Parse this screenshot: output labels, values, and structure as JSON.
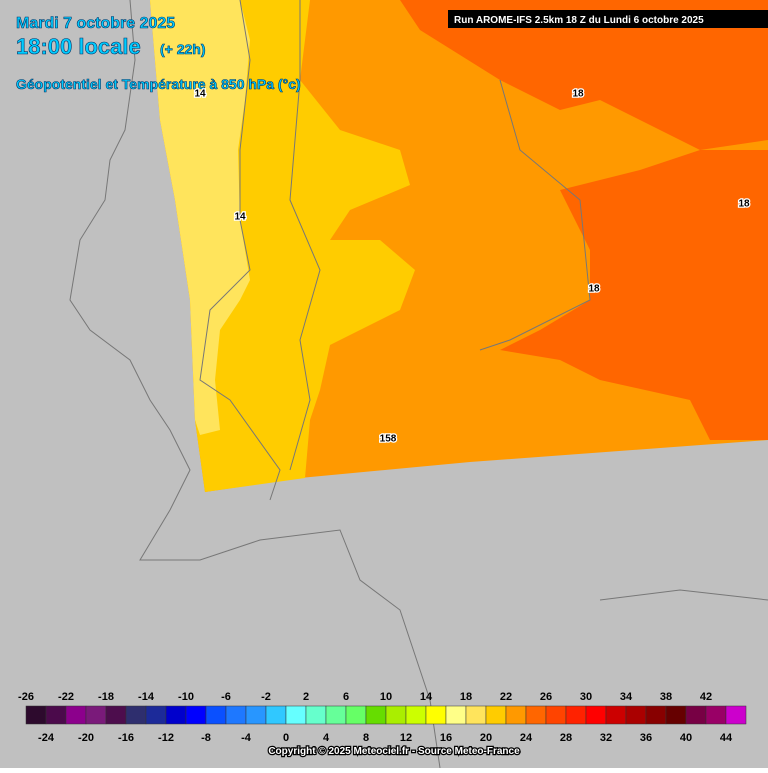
{
  "header": {
    "date": "Mardi 7 octobre 2025",
    "time": "18:00 locale",
    "lead": "(+ 22h)",
    "product": "Géopotentiel et Température à 850 hPa (°c)"
  },
  "run": "Run AROME-IFS 2.5km 18 Z du Lundi 6 octobre 2025",
  "contour_labels": [
    "14",
    "14",
    "18",
    "18",
    "18",
    "158"
  ],
  "legend": {
    "ticks_top": [
      -26,
      -22,
      -18,
      -14,
      -10,
      -6,
      -2,
      2,
      6,
      10,
      14,
      18,
      22,
      26,
      30,
      34,
      38,
      42
    ],
    "ticks_bottom": [
      -24,
      -20,
      -16,
      -12,
      -8,
      -4,
      0,
      4,
      8,
      12,
      16,
      20,
      24,
      28,
      32,
      36,
      40,
      44
    ],
    "colors": [
      "#2d0a2d",
      "#4b0a4b",
      "#8c008c",
      "#7a1a7a",
      "#4d0d4d",
      "#2e2e6e",
      "#1c2a99",
      "#0000cc",
      "#0000ff",
      "#0a50ff",
      "#1e78ff",
      "#2896ff",
      "#30c8ff",
      "#66ffff",
      "#66ffcc",
      "#66ff99",
      "#66ff66",
      "#66dd00",
      "#aaee00",
      "#ccff00",
      "#ffff00",
      "#ffff88",
      "#ffe45c",
      "#ffcc00",
      "#ff9900",
      "#ff6600",
      "#ff4400",
      "#ff2200",
      "#ff0000",
      "#cc0000",
      "#aa0000",
      "#880000",
      "#660000",
      "#770044",
      "#990066",
      "#cc00cc"
    ]
  },
  "copyright": "Copyright © 2025 Meteociel.fr - Source Meteo-France"
}
